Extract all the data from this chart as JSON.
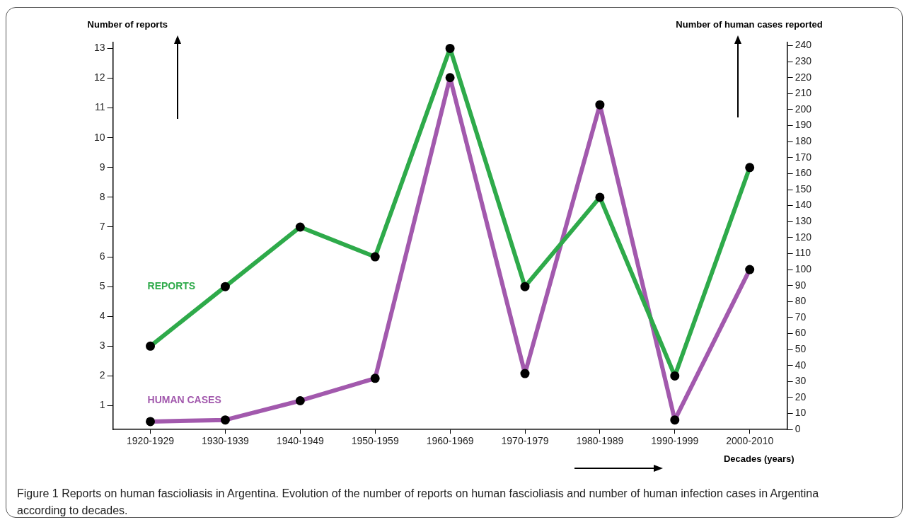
{
  "chart_data": {
    "type": "line",
    "ylabel": "Number of reports",
    "y2label": "Number of human cases reported",
    "xlabel": "Decades (years)",
    "categories": [
      "1920-1929",
      "1930-1939",
      "1940-1949",
      "1950-1959",
      "1960-1969",
      "1970-1979",
      "1980-1989",
      "1990-1999",
      "2000-2010"
    ],
    "series": [
      {
        "name": "REPORTS",
        "color": "#2eaa4a",
        "values": [
          3,
          5,
          7,
          6,
          13,
          5,
          8,
          2,
          9
        ]
      },
      {
        "name": "HUMAN CASES",
        "color": "#a259ad",
        "axis": "y2",
        "values": [
          5,
          6,
          18,
          32,
          220,
          35,
          203,
          6,
          100
        ]
      }
    ],
    "ylim": [
      0.2,
      13.2
    ],
    "yticks": [
      1,
      2,
      3,
      4,
      5,
      6,
      7,
      8,
      9,
      10,
      11,
      12,
      13
    ],
    "y2lim": [
      0,
      242
    ],
    "y2ticks": [
      0,
      10,
      20,
      30,
      40,
      50,
      60,
      70,
      80,
      90,
      100,
      110,
      120,
      130,
      140,
      150,
      160,
      170,
      180,
      190,
      200,
      210,
      220,
      230,
      240
    ],
    "grid": false,
    "legend": false,
    "marker": "circle",
    "line_style": "solid",
    "annotations": [
      "Figure 1 Reports on human fascioliasis in Argentina. Evolution of the number of reports on human fascioliasis and number of human infection cases in Argentina according to decades."
    ]
  }
}
